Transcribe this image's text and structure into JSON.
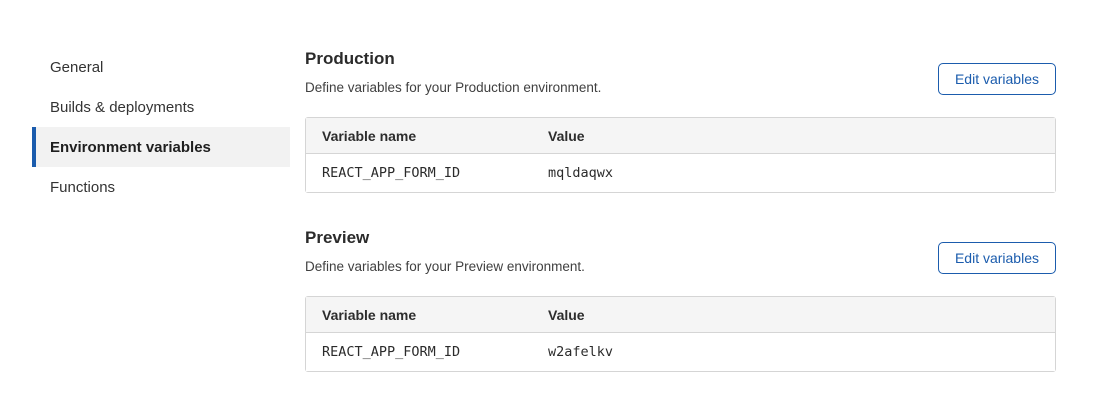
{
  "sidebar": {
    "items": [
      {
        "label": "General",
        "active": false
      },
      {
        "label": "Builds & deployments",
        "active": false
      },
      {
        "label": "Environment variables",
        "active": true
      },
      {
        "label": "Functions",
        "active": false
      }
    ]
  },
  "sections": [
    {
      "title": "Production",
      "description": "Define variables for your Production environment.",
      "button_label": "Edit variables",
      "table": {
        "columns": [
          "Variable name",
          "Value"
        ],
        "rows": [
          {
            "name": "REACT_APP_FORM_ID",
            "value": "mqldaqwx"
          }
        ]
      }
    },
    {
      "title": "Preview",
      "description": "Define variables for your Preview environment.",
      "button_label": "Edit variables",
      "table": {
        "columns": [
          "Variable name",
          "Value"
        ],
        "rows": [
          {
            "name": "REACT_APP_FORM_ID",
            "value": "w2afelkv"
          }
        ]
      }
    }
  ],
  "colors": {
    "accent_blue": "#1b5cad",
    "active_item_bg": "#f2f2f2",
    "table_header_bg": "#f5f5f5",
    "table_border": "#d5d5d5"
  }
}
